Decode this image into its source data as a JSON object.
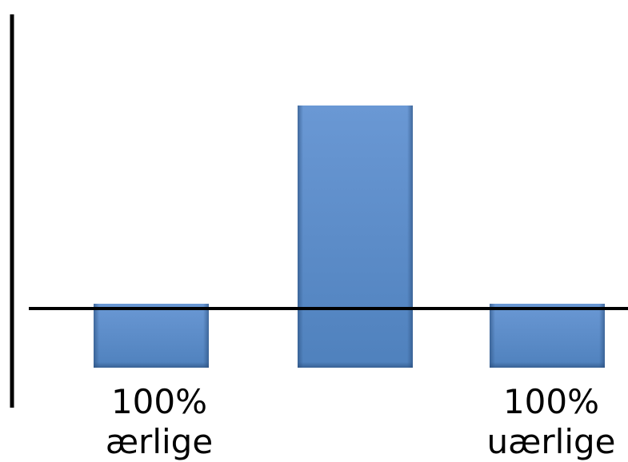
{
  "chart_data": {
    "type": "bar",
    "categories": [
      "100% ærlige",
      "",
      "100% uærlige"
    ],
    "category_label_lines": [
      [
        "100%",
        "ærlige"
      ],
      [],
      [
        "100%",
        "uærlige"
      ]
    ],
    "values": [
      1,
      4.1,
      1
    ],
    "colors": {
      "bar": "#4f81bd",
      "bar_light": "#6a98d4",
      "bar_dark": "#2c5180",
      "axis": "#000000"
    },
    "title": "",
    "xlabel": "",
    "ylabel": "",
    "grid": false,
    "legend": "none"
  }
}
